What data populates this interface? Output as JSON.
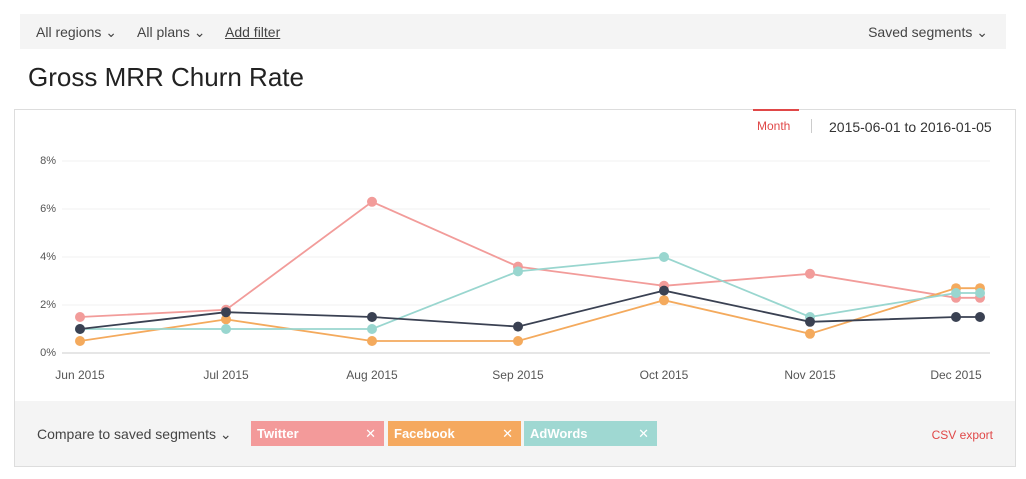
{
  "filters": {
    "region": "All regions",
    "plan": "All plans",
    "add": "Add filter",
    "saved": "Saved segments"
  },
  "page_title": "Gross MRR Churn Rate",
  "period": "Month",
  "date_range": "2015-06-01 to 2016-01-05",
  "compare_label": "Compare to saved segments",
  "export": "CSV export",
  "chart_data": {
    "type": "line",
    "categories": [
      "Jun 2015",
      "Jul 2015",
      "Aug 2015",
      "Sep 2015",
      "Oct 2015",
      "Nov 2015",
      "Dec 2015",
      null
    ],
    "series": [
      {
        "name": "Twitter",
        "color": "#f29c9a",
        "values": [
          1.5,
          1.8,
          6.3,
          3.6,
          2.8,
          3.3,
          2.3,
          2.3
        ]
      },
      {
        "name": "Facebook",
        "color": "#f4aa5d",
        "values": [
          0.5,
          1.4,
          0.5,
          0.5,
          2.2,
          0.8,
          2.7,
          2.7
        ]
      },
      {
        "name": "AdWords",
        "color": "#99d6cf",
        "values": [
          1.0,
          1.0,
          1.0,
          3.4,
          4.0,
          1.5,
          2.5,
          2.5
        ]
      },
      {
        "color": "#3a4152",
        "values": [
          1.0,
          1.7,
          1.5,
          1.1,
          2.6,
          1.3,
          1.5,
          1.5
        ]
      }
    ],
    "ylim": [
      0,
      8
    ],
    "yticks": [
      {
        "value": 0,
        "label": "0%"
      },
      {
        "value": 2,
        "label": "2%"
      },
      {
        "value": 4,
        "label": "4%"
      },
      {
        "value": 6,
        "label": "6%"
      },
      {
        "value": 8,
        "label": "8%"
      }
    ],
    "grid": true
  }
}
